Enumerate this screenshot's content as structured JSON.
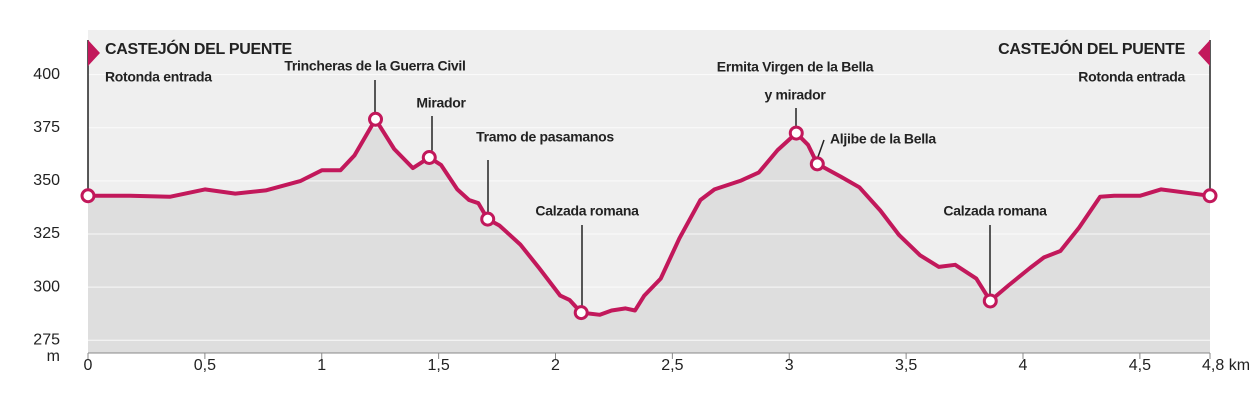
{
  "chart_data": {
    "type": "area",
    "y_unit": "m",
    "xlim": [
      0,
      4.8
    ],
    "ylim": [
      269,
      421
    ],
    "xticks": [
      0,
      {
        "value": 0.5,
        "label": "0,5"
      },
      1,
      {
        "value": 1.5,
        "label": "1,5"
      },
      2,
      {
        "value": 2.5,
        "label": "2,5"
      },
      3,
      {
        "value": 3.5,
        "label": "3,5"
      },
      4,
      {
        "value": 4.5,
        "label": "4,5"
      },
      {
        "value": 4.8,
        "label": "4,8 km"
      }
    ],
    "yticks": [
      275,
      300,
      325,
      350,
      375,
      400
    ],
    "grid": true,
    "line_color": "#c2185b",
    "x": [
      0,
      0.18,
      0.35,
      0.5,
      0.63,
      0.76,
      0.91,
      1.0,
      1.08,
      1.14,
      1.23,
      1.31,
      1.39,
      1.46,
      1.51,
      1.58,
      1.63,
      1.67,
      1.71,
      1.76,
      1.85,
      1.93,
      2.02,
      2.06,
      2.11,
      2.19,
      2.24,
      2.3,
      2.34,
      2.38,
      2.45,
      2.53,
      2.62,
      2.68,
      2.79,
      2.87,
      2.95,
      3.03,
      3.08,
      3.12,
      3.22,
      3.3,
      3.39,
      3.47,
      3.56,
      3.64,
      3.71,
      3.8,
      3.86,
      3.94,
      4.03,
      4.09,
      4.16,
      4.24,
      4.33,
      4.39,
      4.5,
      4.59,
      4.8
    ],
    "values": [
      343,
      343,
      342.5,
      346,
      344,
      345.5,
      350,
      355,
      355,
      362,
      379,
      365,
      356,
      361,
      357.5,
      346,
      341,
      339.5,
      332,
      329,
      320,
      309,
      296,
      294,
      288,
      287,
      289,
      290,
      289,
      296,
      304,
      323,
      341,
      346,
      350,
      354,
      364.5,
      372.5,
      367,
      358,
      352,
      347,
      336,
      324.5,
      315,
      309.5,
      310.5,
      304,
      293.5,
      301,
      309,
      314,
      317,
      328,
      342.5,
      343,
      343,
      346,
      343
    ],
    "annotations": [
      {
        "x": 0,
        "y": 343,
        "label": [
          "CASTEJÓN DEL PUENTE",
          "Rotonda entrada"
        ]
      },
      {
        "x": 1.23,
        "y": 379,
        "label": [
          "Trincheras de la Guerra Civil"
        ]
      },
      {
        "x": 1.46,
        "y": 361,
        "label": [
          "Mirador"
        ]
      },
      {
        "x": 1.71,
        "y": 332,
        "label": [
          "Tramo de pasamanos"
        ]
      },
      {
        "x": 2.11,
        "y": 288,
        "label": [
          "Calzada romana"
        ]
      },
      {
        "x": 3.03,
        "y": 372.5,
        "label": [
          "Ermita Virgen de la Bella",
          "y mirador"
        ]
      },
      {
        "x": 3.12,
        "y": 358,
        "label": [
          "Aljibe de la Bella"
        ]
      },
      {
        "x": 3.86,
        "y": 293.5,
        "label": [
          "Calzada romana"
        ]
      },
      {
        "x": 4.8,
        "y": 343,
        "label": [
          "CASTEJÓN DEL PUENTE",
          "Rotonda entrada"
        ]
      }
    ]
  }
}
